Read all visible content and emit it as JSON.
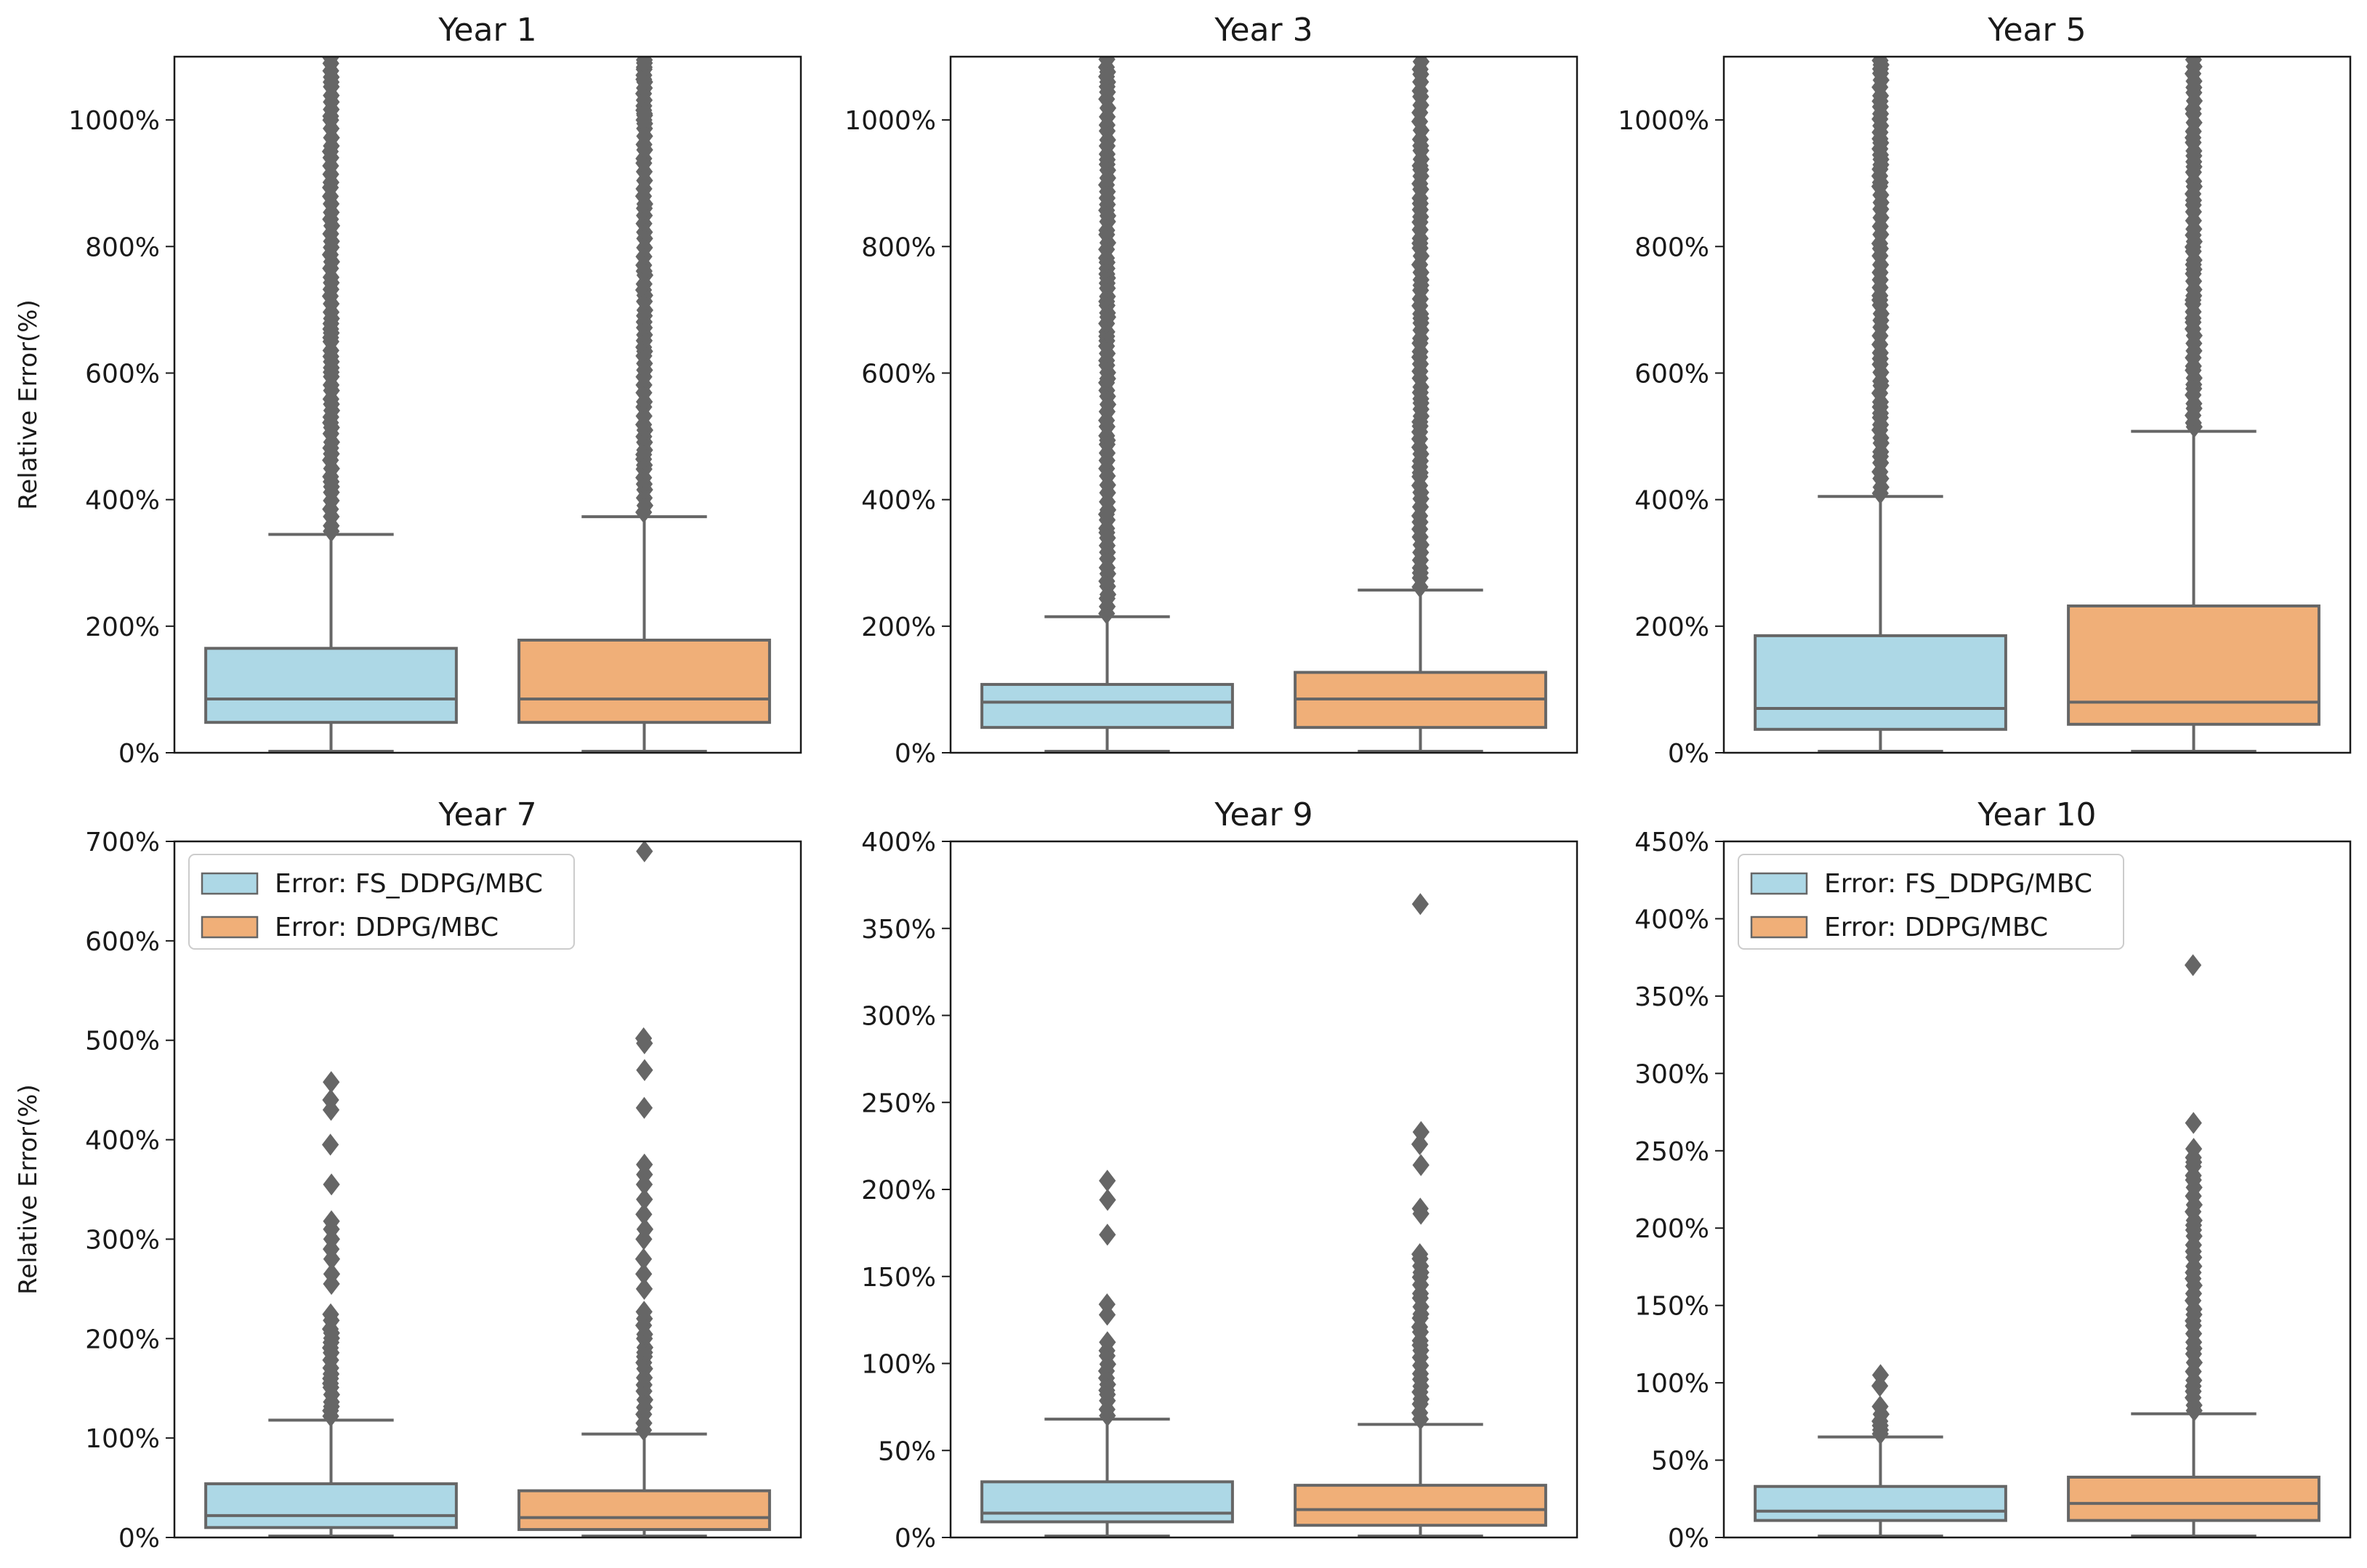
{
  "figure": {
    "ylabel": "Relative Error(%)",
    "colors": {
      "fs_ddpg": "#ADD8E6",
      "ddpg": "#F0AF78",
      "box_edge": "#666666",
      "axis": "#1a1a1a"
    }
  },
  "chart_data": [
    {
      "type": "box",
      "title": "Year 1",
      "ylabel": "Relative Error(%)",
      "ylim": [
        0,
        1100
      ],
      "yticks": [
        0,
        200,
        400,
        600,
        800,
        1000
      ],
      "ytick_labels": [
        "0%",
        "200%",
        "400%",
        "600%",
        "800%",
        "1000%"
      ],
      "legend": null,
      "series": [
        {
          "name": "Error: FS_DDPG/MBC",
          "whisker_low": 0,
          "q1": 48,
          "median": 85,
          "q3": 165,
          "whisker_high": 345,
          "outliers_dense_range": [
            350,
            1100
          ],
          "outliers": []
        },
        {
          "name": "Error: DDPG/MBC",
          "whisker_low": 0,
          "q1": 48,
          "median": 85,
          "q3": 178,
          "whisker_high": 373,
          "outliers_dense_range": [
            380,
            1100
          ],
          "outliers": [
            1060,
            1080,
            1090,
            1010,
            1000
          ]
        }
      ]
    },
    {
      "type": "box",
      "title": "Year 3",
      "ylabel": "",
      "ylim": [
        0,
        1100
      ],
      "yticks": [
        0,
        200,
        400,
        600,
        800,
        1000
      ],
      "ytick_labels": [
        "0%",
        "200%",
        "400%",
        "600%",
        "800%",
        "1000%"
      ],
      "legend": null,
      "series": [
        {
          "name": "Error: FS_DDPG/MBC",
          "whisker_low": 0,
          "q1": 40,
          "median": 80,
          "q3": 108,
          "whisker_high": 215,
          "outliers_dense_range": [
            220,
            1100
          ],
          "outliers": []
        },
        {
          "name": "Error: DDPG/MBC",
          "whisker_low": 0,
          "q1": 40,
          "median": 85,
          "q3": 127,
          "whisker_high": 257,
          "outliers_dense_range": [
            262,
            1100
          ],
          "outliers": []
        }
      ]
    },
    {
      "type": "box",
      "title": "Year 5",
      "ylabel": "",
      "ylim": [
        0,
        1100
      ],
      "yticks": [
        0,
        200,
        400,
        600,
        800,
        1000
      ],
      "ytick_labels": [
        "0%",
        "200%",
        "400%",
        "600%",
        "800%",
        "1000%"
      ],
      "legend": null,
      "series": [
        {
          "name": "Error: FS_DDPG/MBC",
          "whisker_low": 0,
          "q1": 37,
          "median": 70,
          "q3": 185,
          "whisker_high": 405,
          "outliers_dense_range": [
            410,
            1100
          ],
          "outliers": []
        },
        {
          "name": "Error: DDPG/MBC",
          "whisker_low": 0,
          "q1": 45,
          "median": 80,
          "q3": 232,
          "whisker_high": 508,
          "outliers_dense_range": [
            515,
            1100
          ],
          "outliers": []
        }
      ]
    },
    {
      "type": "box",
      "title": "Year 7",
      "ylabel": "Relative Error(%)",
      "ylim": [
        0,
        700
      ],
      "yticks": [
        0,
        100,
        200,
        300,
        400,
        500,
        600,
        700
      ],
      "ytick_labels": [
        "0%",
        "100%",
        "200%",
        "300%",
        "400%",
        "500%",
        "600%",
        "700%"
      ],
      "legend": "upper left",
      "series": [
        {
          "name": "Error: FS_DDPG/MBC",
          "whisker_low": 0,
          "q1": 10,
          "median": 22,
          "q3": 54,
          "whisker_high": 118,
          "outliers_dense_range": [
            122,
            230
          ],
          "outliers": [
            255,
            265,
            280,
            290,
            300,
            310,
            318,
            355,
            395,
            430,
            440,
            458
          ]
        },
        {
          "name": "Error: DDPG/MBC",
          "whisker_low": 0,
          "q1": 8,
          "median": 20,
          "q3": 47,
          "whisker_high": 104,
          "outliers_dense_range": [
            108,
            230
          ],
          "outliers": [
            250,
            265,
            280,
            300,
            310,
            325,
            340,
            355,
            365,
            375,
            432,
            470,
            497,
            502,
            690
          ]
        }
      ]
    },
    {
      "type": "box",
      "title": "Year 9",
      "ylabel": "",
      "ylim": [
        0,
        400
      ],
      "yticks": [
        0,
        50,
        100,
        150,
        200,
        250,
        300,
        350,
        400
      ],
      "ytick_labels": [
        "0%",
        "50%",
        "100%",
        "150%",
        "200%",
        "250%",
        "300%",
        "350%",
        "400%"
      ],
      "legend": null,
      "series": [
        {
          "name": "Error: FS_DDPG/MBC",
          "whisker_low": 0,
          "q1": 9,
          "median": 14,
          "q3": 32,
          "whisker_high": 68,
          "outliers_dense_range": [
            70,
            115
          ],
          "outliers": [
            128,
            134,
            174,
            194,
            205
          ]
        },
        {
          "name": "Error: DDPG/MBC",
          "whisker_low": 0,
          "q1": 7,
          "median": 16,
          "q3": 30,
          "whisker_high": 65,
          "outliers_dense_range": [
            68,
            165
          ],
          "outliers": [
            186,
            189,
            214,
            226,
            233,
            364
          ]
        }
      ]
    },
    {
      "type": "box",
      "title": "Year 10",
      "ylabel": "",
      "ylim": [
        0,
        450
      ],
      "yticks": [
        0,
        50,
        100,
        150,
        200,
        250,
        300,
        350,
        400,
        450
      ],
      "ytick_labels": [
        "0%",
        "50%",
        "100%",
        "150%",
        "200%",
        "250%",
        "300%",
        "350%",
        "400%",
        "450%"
      ],
      "legend": "upper left",
      "series": [
        {
          "name": "Error: FS_DDPG/MBC",
          "whisker_low": 0,
          "q1": 11,
          "median": 17,
          "q3": 33,
          "whisker_high": 65,
          "outliers_dense_range": [
            67,
            88
          ],
          "outliers": [
            98,
            105
          ]
        },
        {
          "name": "Error: DDPG/MBC",
          "whisker_low": 0,
          "q1": 11,
          "median": 22,
          "q3": 39,
          "whisker_high": 80,
          "outliers_dense_range": [
            82,
            255
          ],
          "outliers": [
            268,
            370
          ]
        }
      ]
    }
  ]
}
